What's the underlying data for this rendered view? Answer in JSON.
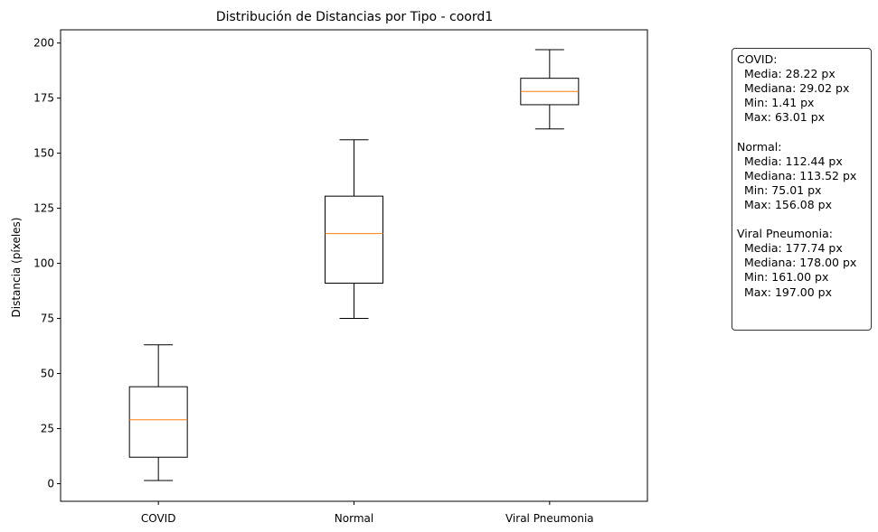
{
  "chart_data": {
    "type": "box",
    "title": "Distribución de Distancias por Tipo - coord1",
    "xlabel": "",
    "ylabel": "Distancia (píxeles)",
    "ylim": [
      -8,
      206
    ],
    "yticks": [
      0,
      25,
      50,
      75,
      100,
      125,
      150,
      175,
      200
    ],
    "categories": [
      "COVID",
      "Normal",
      "Viral Pneumonia"
    ],
    "boxes": [
      {
        "category": "COVID",
        "whisker_low": 1.41,
        "q1": 12,
        "median": 29.02,
        "q3": 44,
        "whisker_high": 63.01
      },
      {
        "category": "Normal",
        "whisker_low": 75.01,
        "q1": 91,
        "median": 113.52,
        "q3": 130.5,
        "whisker_high": 156.08
      },
      {
        "category": "Viral Pneumonia",
        "whisker_low": 161.0,
        "q1": 172,
        "median": 178.0,
        "q3": 184,
        "whisker_high": 197.0
      }
    ],
    "colors": {
      "box": "#000000",
      "median": "#ff7f0e"
    },
    "grid": false,
    "legend": "none"
  },
  "stats_box": {
    "lines": [
      "COVID:",
      "  Media: 28.22 px",
      "  Mediana: 29.02 px",
      "  Min: 1.41 px",
      "  Max: 63.01 px",
      "",
      "Normal:",
      "  Media: 112.44 px",
      "  Mediana: 113.52 px",
      "  Min: 75.01 px",
      "  Max: 156.08 px",
      "",
      "Viral Pneumonia:",
      "  Media: 177.74 px",
      "  Mediana: 178.00 px",
      "  Min: 161.00 px",
      "  Max: 197.00 px"
    ]
  }
}
